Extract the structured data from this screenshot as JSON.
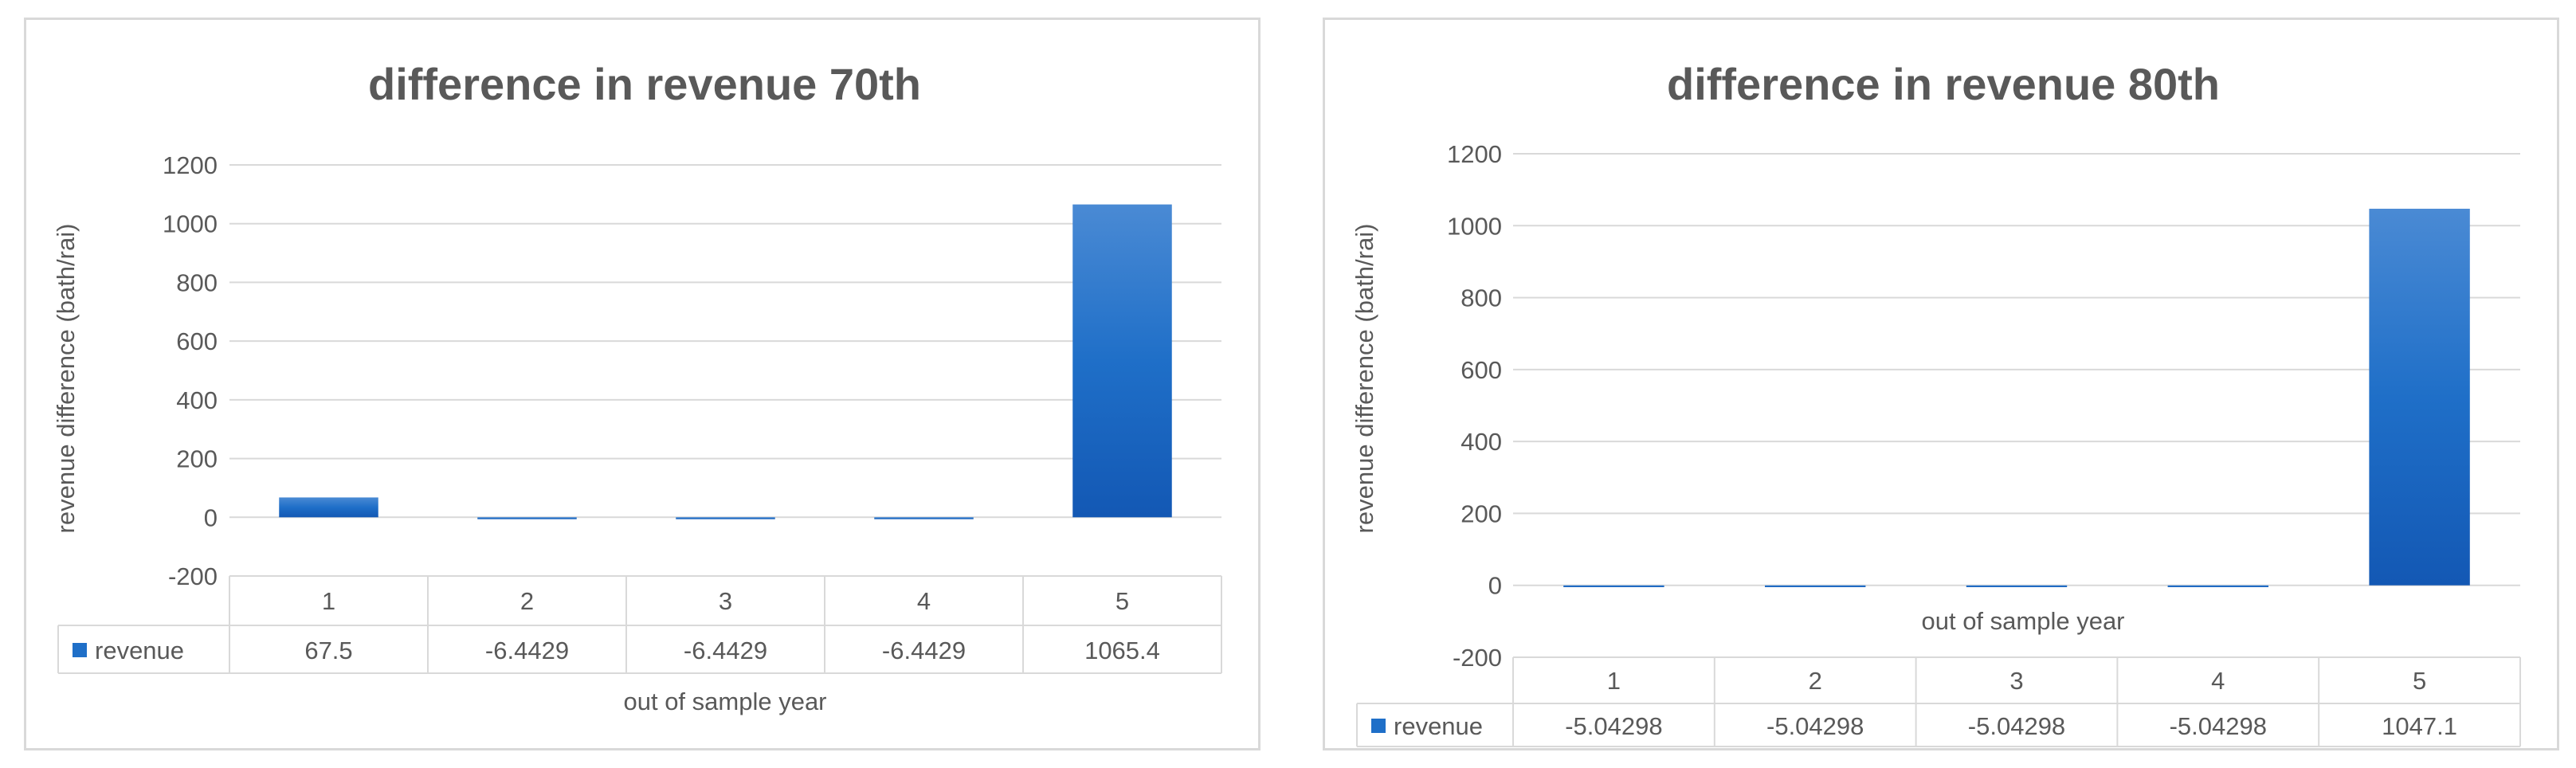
{
  "chart_data": [
    {
      "type": "bar",
      "title": "difference in revenue 70th",
      "xlabel": "out of sample year",
      "ylabel": "revenue difference (bath/rai)",
      "categories": [
        "1",
        "2",
        "3",
        "4",
        "5"
      ],
      "series": [
        {
          "name": "revenue",
          "values": [
            67.5,
            -6.4429,
            -6.4429,
            -6.4429,
            1065.4
          ],
          "labels": [
            "67.5",
            "-6.4429",
            "-6.4429",
            "-6.4429",
            "1065.4"
          ]
        }
      ],
      "ylim": [
        -200,
        1200
      ],
      "yticks": [
        "1200",
        "1000",
        "800",
        "600",
        "400",
        "200",
        "0",
        "-200"
      ],
      "grid": true,
      "legend": "data-table",
      "bar_color": "#1f6fc8"
    },
    {
      "type": "bar",
      "title": "difference in revenue 80th",
      "xlabel": "out of sample year",
      "ylabel": "revenue difference (bath/rai)",
      "categories": [
        "1",
        "2",
        "3",
        "4",
        "5"
      ],
      "series": [
        {
          "name": "revenue",
          "values": [
            -5.04298,
            -5.04298,
            -5.04298,
            -5.04298,
            1047.1
          ],
          "labels": [
            "-5.04298",
            "-5.04298",
            "-5.04298",
            "-5.04298",
            "1047.1"
          ]
        }
      ],
      "ylim": [
        -200,
        1200
      ],
      "yticks": [
        "1200",
        "1000",
        "800",
        "600",
        "400",
        "200",
        "0",
        "-200"
      ],
      "grid": true,
      "legend": "data-table",
      "bar_color": "#1f6fc8"
    }
  ]
}
